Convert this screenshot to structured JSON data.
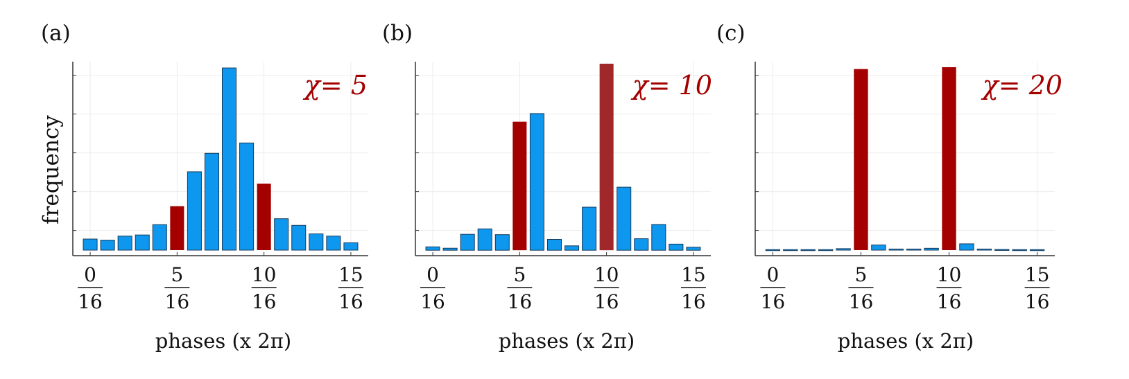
{
  "colors": {
    "blue": "#0e97ee",
    "red": "#a40000",
    "red_alt": "#a0282a"
  },
  "chart_data": [
    {
      "type": "bar",
      "panel": "(a)",
      "annotation": "χ= 5",
      "ylabel": "frequency",
      "xlabel": "phases (x 2π)",
      "x": [
        0,
        1,
        2,
        3,
        4,
        5,
        6,
        7,
        8,
        9,
        10,
        11,
        12,
        13,
        14,
        15
      ],
      "values": [
        3,
        2.7,
        3.8,
        4.1,
        6.9,
        11.9,
        21.2,
        26.2,
        49.3,
        29,
        18,
        8.5,
        6.7,
        4.4,
        3.8,
        2
      ],
      "highlight": [
        5,
        10
      ],
      "xtick_numerators": [
        "0",
        "5",
        "10",
        "15"
      ],
      "xtick_denominator": "16",
      "xlim": [
        -1,
        16
      ],
      "ylim": [
        -1.5,
        51
      ]
    },
    {
      "type": "bar",
      "panel": "(b)",
      "annotation": "χ= 10",
      "xlabel": "phases (x 2π)",
      "x": [
        0,
        1,
        2,
        3,
        4,
        5,
        6,
        7,
        8,
        9,
        10,
        11,
        12,
        13,
        14,
        15
      ],
      "values": [
        1,
        0.6,
        4.7,
        6.3,
        4.6,
        37.9,
        40.3,
        3.2,
        1.3,
        12.7,
        55,
        18.6,
        3.4,
        7.6,
        1.8,
        0.9
      ],
      "highlight": [
        5,
        10
      ],
      "xtick_numerators": [
        "0",
        "5",
        "10",
        "15"
      ],
      "xtick_denominator": "16",
      "xlim": [
        -1,
        16
      ],
      "ylim": [
        -1.6,
        55.6
      ]
    },
    {
      "type": "bar",
      "panel": "(c)",
      "annotation": "χ= 20",
      "xlabel": "phases (x 2π)",
      "x": [
        0,
        1,
        2,
        3,
        4,
        5,
        6,
        7,
        8,
        9,
        10,
        11,
        12,
        13,
        14,
        15
      ],
      "values": [
        0.15,
        0.15,
        0.15,
        0.15,
        0.4,
        49,
        1.4,
        0.3,
        0.3,
        0.5,
        49.5,
        1.7,
        0.3,
        0.2,
        0.15,
        0.15
      ],
      "highlight": [
        5,
        10
      ],
      "xtick_numerators": [
        "0",
        "5",
        "10",
        "15"
      ],
      "xtick_denominator": "16",
      "xlim": [
        -1,
        16
      ],
      "ylim": [
        -1.5,
        51
      ]
    }
  ]
}
